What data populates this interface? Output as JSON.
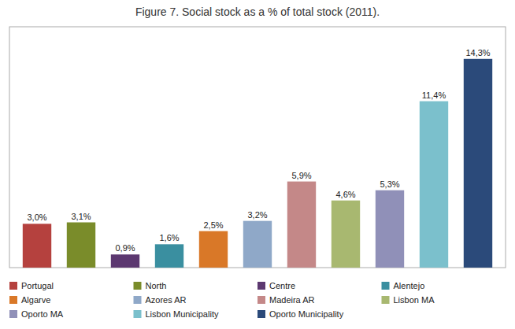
{
  "chart_data": {
    "type": "bar",
    "title": "Figure 7. Social stock as a % of total stock (2011).",
    "categories": [
      "Portugal",
      "North",
      "Centre",
      "Alentejo",
      "Algarve",
      "Azores AR",
      "Madeira AR",
      "Lisbon MA",
      "Oporto MA",
      "Lisbon Municipality",
      "Oporto Municipality"
    ],
    "values": [
      3.0,
      3.1,
      0.9,
      1.6,
      2.5,
      3.2,
      5.9,
      4.6,
      5.3,
      11.4,
      14.3
    ],
    "value_labels": [
      "3,0%",
      "3,1%",
      "0,9%",
      "1,6%",
      "2,5%",
      "3,2%",
      "5,9%",
      "4,6%",
      "5,3%",
      "11,4%",
      "14,3%"
    ],
    "colors": [
      "#b5413e",
      "#7a8c2a",
      "#5c3870",
      "#3a8fa0",
      "#d97828",
      "#8fa8c8",
      "#c48888",
      "#a8b870",
      "#9090b8",
      "#7bc0cc",
      "#2b4a7a"
    ],
    "ylim": [
      0,
      16.5
    ],
    "data_labels": true,
    "tick_labels": false,
    "grid": false,
    "legend": "bottom"
  }
}
